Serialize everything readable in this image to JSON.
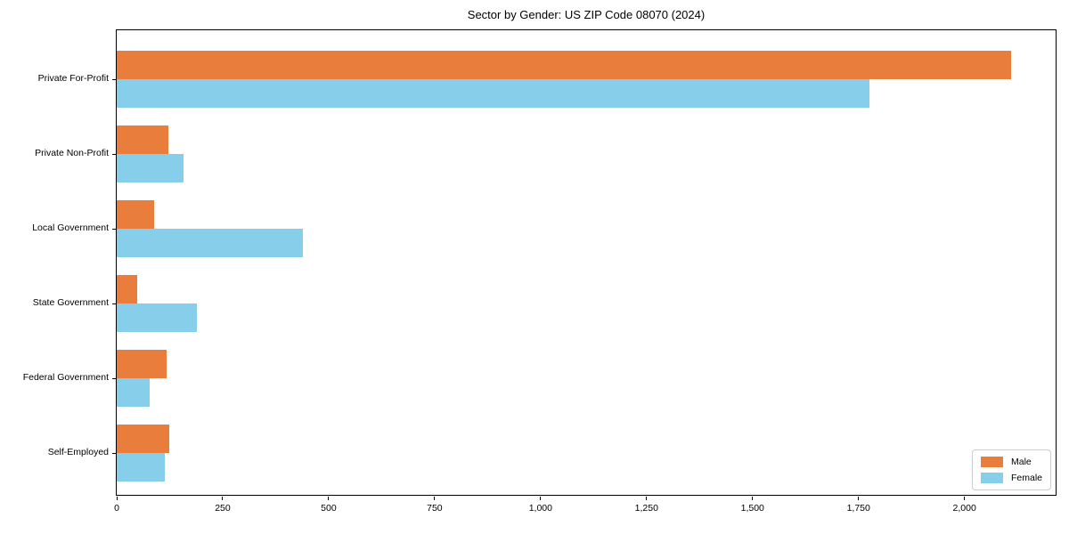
{
  "chart_data": {
    "type": "bar",
    "orientation": "horizontal",
    "title": "Sector by Gender: US ZIP Code 08070 (2024)",
    "categories": [
      "Private For-Profit",
      "Private Non-Profit",
      "Local Government",
      "State Government",
      "Federal Government",
      "Self-Employed"
    ],
    "series": [
      {
        "name": "Male",
        "color": "#E87D3C",
        "values": [
          2110,
          122,
          88,
          48,
          117,
          124
        ]
      },
      {
        "name": "Female",
        "color": "#87CEEB",
        "values": [
          1775,
          158,
          440,
          190,
          78,
          113
        ]
      }
    ],
    "xlabel": "",
    "ylabel": "",
    "xlim": [
      0,
      2215
    ],
    "x_ticks": [
      0,
      250,
      500,
      750,
      1000,
      1250,
      1500,
      1750,
      2000
    ],
    "x_tick_labels": [
      "0",
      "250",
      "500",
      "750",
      "1,000",
      "1,250",
      "1,500",
      "1,750",
      "2,000"
    ],
    "grid": false,
    "legend_position": "lower right"
  },
  "colors": {
    "male": "#E87D3C",
    "female": "#87CEEB",
    "spine": "#000000",
    "legend_border": "#cccccc",
    "background": "#ffffff"
  }
}
